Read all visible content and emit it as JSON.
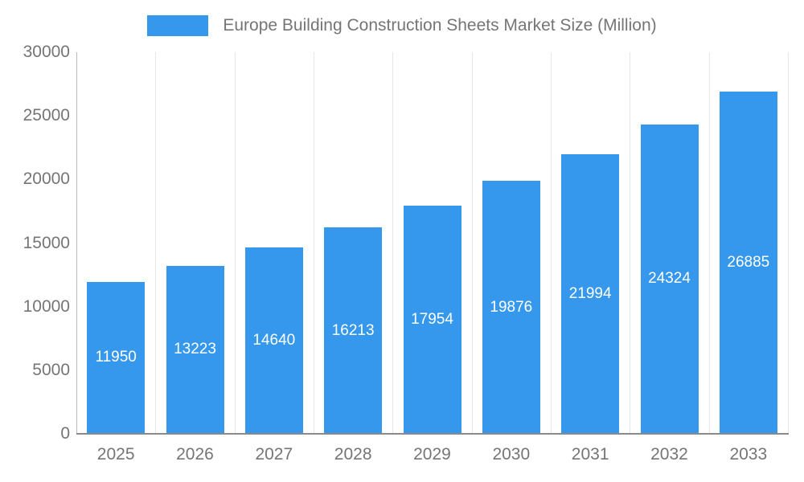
{
  "chart_data": {
    "type": "bar",
    "title": "Europe Building Construction Sheets Market Size (Million)",
    "categories": [
      "2025",
      "2026",
      "2027",
      "2028",
      "2029",
      "2030",
      "2031",
      "2032",
      "2033"
    ],
    "values": [
      11950,
      13223,
      14640,
      16213,
      17954,
      19876,
      21994,
      24324,
      26885
    ],
    "xlabel": "",
    "ylabel": "",
    "ylim": [
      0,
      30000
    ],
    "y_ticks": [
      0,
      5000,
      10000,
      15000,
      20000,
      25000,
      30000
    ],
    "grid": "vertical",
    "legend_position": "top",
    "bar_color": "#3598EC",
    "value_label_color": "#ffffff",
    "axis_text_color": "#757575"
  }
}
